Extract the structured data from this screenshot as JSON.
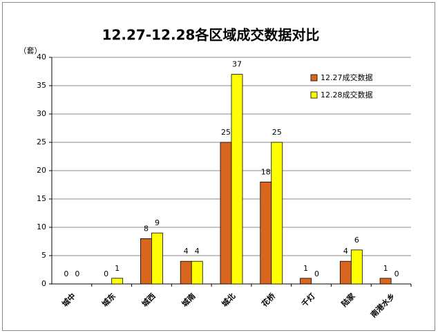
{
  "chart_data": {
    "type": "bar",
    "title": "12.27-12.28各区域成交数据对比",
    "y_label": "（套）",
    "categories": [
      "城中",
      "城东",
      "城西",
      "城南",
      "城北",
      "花桥",
      "千灯",
      "陆家",
      "南港水乡"
    ],
    "series": [
      {
        "name": "12.27成交数据",
        "color": "#d9661f",
        "values": [
          0,
          0,
          8,
          4,
          25,
          18,
          1,
          4,
          1
        ]
      },
      {
        "name": "12.28成交数据",
        "color": "#ffff00",
        "values": [
          0,
          1,
          9,
          4,
          37,
          25,
          0,
          6,
          0
        ]
      }
    ],
    "ylim": [
      0,
      40
    ],
    "yticks": [
      0,
      5,
      10,
      15,
      20,
      25,
      30,
      35,
      40
    ],
    "grid": true,
    "legend": "top-right"
  }
}
